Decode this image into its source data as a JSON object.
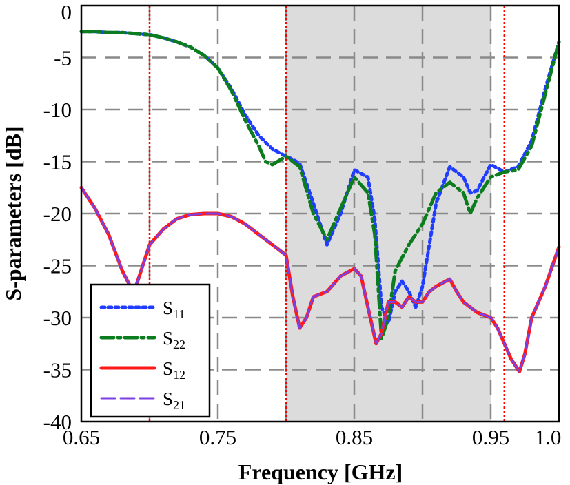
{
  "chart_data": {
    "type": "line",
    "title": "",
    "xlabel": "Frequency [GHz]",
    "ylabel": "S-parameters [dB]",
    "xlim": [
      0.65,
      1.0
    ],
    "ylim": [
      -40,
      0
    ],
    "x_ticks": [
      0.65,
      0.75,
      0.85,
      0.95,
      1.0
    ],
    "x_tick_labels": [
      "0.65",
      "0.75",
      "0.85",
      "0.95",
      "1.0"
    ],
    "y_ticks": [
      0,
      -5,
      -10,
      -15,
      -20,
      -25,
      -30,
      -35,
      -40
    ],
    "y_tick_labels": [
      "0",
      "-5",
      "-10",
      "-15",
      "-20",
      "-25",
      "-30",
      "-35",
      "-40"
    ],
    "grid": true,
    "grid_x": [
      0.7,
      0.75,
      0.8,
      0.85,
      0.9,
      0.95
    ],
    "grid_y": [
      -5,
      -10,
      -15,
      -20,
      -25,
      -30,
      -35
    ],
    "shaded_band": [
      0.8,
      0.95
    ],
    "shaded_color": "#dcdcdc",
    "marker_lines": [
      0.7,
      0.8,
      0.96
    ],
    "marker_color": "#ff0000",
    "legend_position": "bottom-left",
    "series": [
      {
        "name": "S11",
        "legend_main": "S",
        "legend_sub": "11",
        "color": "#1f3cff",
        "style": "dotted",
        "x": [
          0.65,
          0.66,
          0.67,
          0.68,
          0.69,
          0.7,
          0.71,
          0.72,
          0.73,
          0.74,
          0.75,
          0.76,
          0.77,
          0.78,
          0.79,
          0.8,
          0.805,
          0.81,
          0.82,
          0.83,
          0.84,
          0.85,
          0.86,
          0.865,
          0.87,
          0.875,
          0.88,
          0.885,
          0.89,
          0.895,
          0.9,
          0.91,
          0.92,
          0.93,
          0.935,
          0.94,
          0.95,
          0.96,
          0.97,
          0.98,
          0.99,
          1.0
        ],
        "y": [
          -2.5,
          -2.5,
          -2.6,
          -2.6,
          -2.7,
          -2.8,
          -3.1,
          -3.5,
          -4.0,
          -4.8,
          -6.0,
          -8.0,
          -10.5,
          -12.5,
          -13.8,
          -14.5,
          -14.8,
          -15.2,
          -19.0,
          -23.0,
          -20.0,
          -15.8,
          -16.5,
          -20.5,
          -29.0,
          -30.5,
          -27.5,
          -26.5,
          -27.5,
          -29.0,
          -27.0,
          -19.0,
          -15.5,
          -16.5,
          -18.0,
          -17.8,
          -15.3,
          -16.0,
          -15.5,
          -13.0,
          -8.0,
          -3.5
        ]
      },
      {
        "name": "S22",
        "legend_main": "S",
        "legend_sub": "22",
        "color": "#0b7d1e",
        "style": "dash-dot",
        "x": [
          0.65,
          0.66,
          0.67,
          0.68,
          0.69,
          0.7,
          0.71,
          0.72,
          0.73,
          0.74,
          0.75,
          0.76,
          0.77,
          0.78,
          0.785,
          0.79,
          0.8,
          0.81,
          0.82,
          0.83,
          0.84,
          0.85,
          0.86,
          0.865,
          0.87,
          0.875,
          0.88,
          0.89,
          0.9,
          0.91,
          0.92,
          0.93,
          0.935,
          0.94,
          0.95,
          0.96,
          0.97,
          0.98,
          0.99,
          1.0
        ],
        "y": [
          -2.5,
          -2.5,
          -2.6,
          -2.6,
          -2.7,
          -2.8,
          -3.1,
          -3.5,
          -4.0,
          -4.8,
          -6.0,
          -8.2,
          -11.0,
          -13.5,
          -15.0,
          -15.3,
          -14.5,
          -15.5,
          -20.0,
          -22.5,
          -19.5,
          -16.5,
          -18.0,
          -22.0,
          -32.0,
          -30.0,
          -25.5,
          -23.0,
          -21.0,
          -18.0,
          -17.0,
          -18.0,
          -20.0,
          -18.5,
          -16.5,
          -16.0,
          -15.8,
          -13.5,
          -8.5,
          -3.5
        ]
      },
      {
        "name": "S12",
        "legend_main": "S",
        "legend_sub": "12",
        "color": "#ff1a1a",
        "style": "solid",
        "x": [
          0.65,
          0.66,
          0.67,
          0.68,
          0.687,
          0.69,
          0.7,
          0.71,
          0.72,
          0.73,
          0.74,
          0.75,
          0.76,
          0.77,
          0.78,
          0.79,
          0.8,
          0.805,
          0.81,
          0.815,
          0.82,
          0.83,
          0.84,
          0.85,
          0.855,
          0.86,
          0.866,
          0.87,
          0.875,
          0.88,
          0.885,
          0.89,
          0.895,
          0.9,
          0.905,
          0.91,
          0.92,
          0.925,
          0.93,
          0.94,
          0.95,
          0.955,
          0.96,
          0.965,
          0.971,
          0.975,
          0.98,
          0.99,
          1.0
        ],
        "y": [
          -17.5,
          -19.5,
          -22.0,
          -25.5,
          -27.3,
          -27.0,
          -23.0,
          -21.5,
          -20.5,
          -20.1,
          -20.0,
          -20.0,
          -20.3,
          -21.0,
          -22.0,
          -23.0,
          -24.0,
          -28.0,
          -31.0,
          -30.0,
          -28.0,
          -27.5,
          -26.0,
          -25.3,
          -26.0,
          -29.0,
          -32.5,
          -31.5,
          -28.5,
          -28.5,
          -29.0,
          -28.0,
          -28.5,
          -28.5,
          -27.5,
          -27.0,
          -26.3,
          -27.5,
          -28.5,
          -29.5,
          -30.0,
          -31.0,
          -32.5,
          -34.0,
          -35.2,
          -33.5,
          -30.0,
          -27.0,
          -23.2
        ]
      },
      {
        "name": "S21",
        "legend_main": "S",
        "legend_sub": "21",
        "color": "#7b3fe4",
        "style": "dashed",
        "x": [
          0.65,
          0.66,
          0.67,
          0.68,
          0.687,
          0.69,
          0.7,
          0.71,
          0.72,
          0.73,
          0.74,
          0.75,
          0.76,
          0.77,
          0.78,
          0.79,
          0.8,
          0.805,
          0.81,
          0.815,
          0.82,
          0.83,
          0.84,
          0.85,
          0.855,
          0.86,
          0.866,
          0.87,
          0.875,
          0.88,
          0.885,
          0.89,
          0.895,
          0.9,
          0.905,
          0.91,
          0.92,
          0.925,
          0.93,
          0.94,
          0.95,
          0.955,
          0.96,
          0.965,
          0.971,
          0.975,
          0.98,
          0.99,
          1.0
        ],
        "y": [
          -17.5,
          -19.5,
          -22.0,
          -25.5,
          -27.3,
          -27.0,
          -23.0,
          -21.5,
          -20.5,
          -20.1,
          -20.0,
          -20.0,
          -20.3,
          -21.0,
          -22.0,
          -23.0,
          -24.0,
          -28.0,
          -31.0,
          -30.0,
          -28.0,
          -27.5,
          -26.0,
          -25.3,
          -26.0,
          -29.0,
          -32.5,
          -31.5,
          -28.5,
          -28.5,
          -29.0,
          -28.0,
          -28.5,
          -28.5,
          -27.5,
          -27.0,
          -26.3,
          -27.5,
          -28.5,
          -29.5,
          -30.0,
          -31.0,
          -32.5,
          -34.0,
          -35.2,
          -33.5,
          -30.0,
          -27.0,
          -23.2
        ]
      }
    ]
  }
}
